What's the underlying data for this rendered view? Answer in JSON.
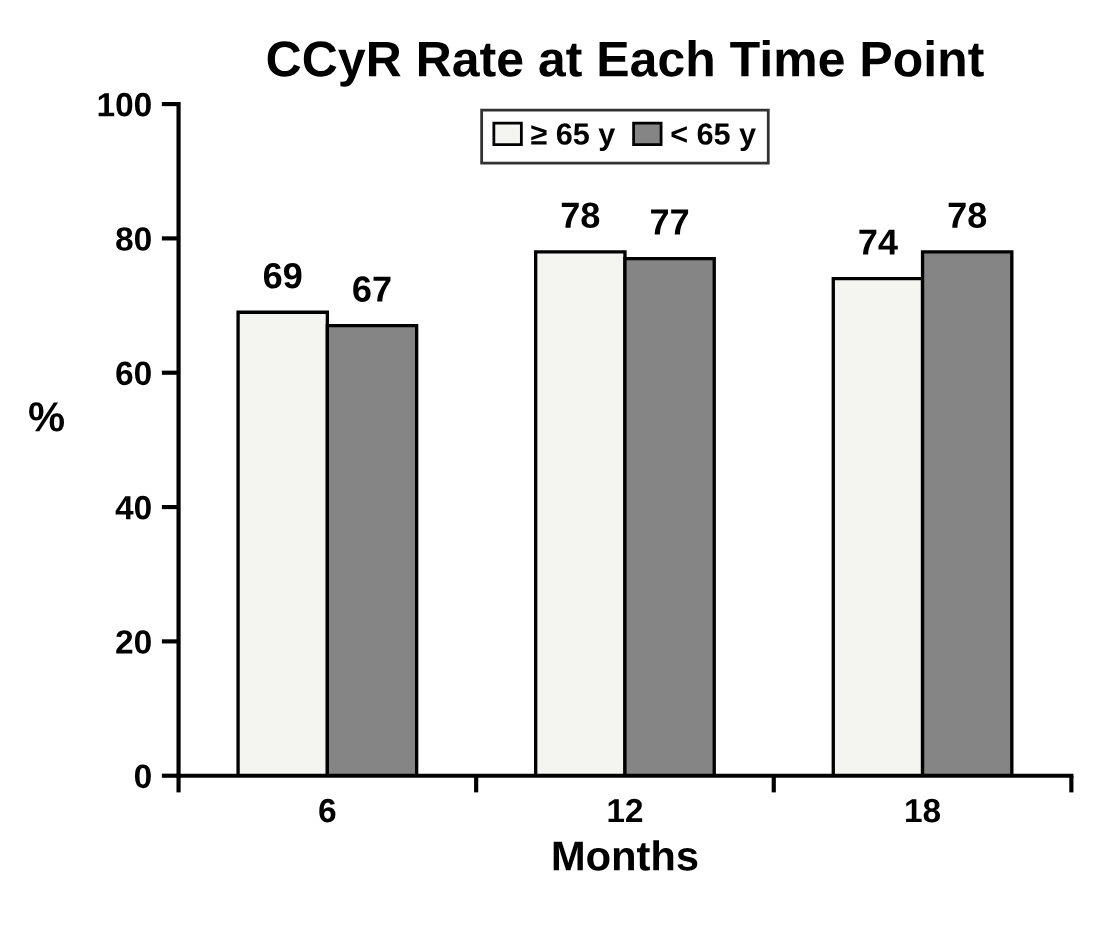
{
  "chart_data": {
    "type": "bar",
    "title": "CCyR Rate at Each Time Point",
    "xlabel": "Months",
    "ylabel": "%",
    "categories": [
      "6",
      "12",
      "18"
    ],
    "series": [
      {
        "name": "≥ 65 y",
        "color": "#f4f4f0",
        "values": [
          69,
          78,
          74
        ]
      },
      {
        "name": "< 65 y",
        "color": "#858585",
        "values": [
          67,
          77,
          78
        ]
      }
    ],
    "ylim": [
      0,
      100
    ],
    "yticks": [
      0,
      20,
      40,
      60,
      80,
      100
    ],
    "grid": false,
    "legend": "top",
    "data_labels": true
  }
}
